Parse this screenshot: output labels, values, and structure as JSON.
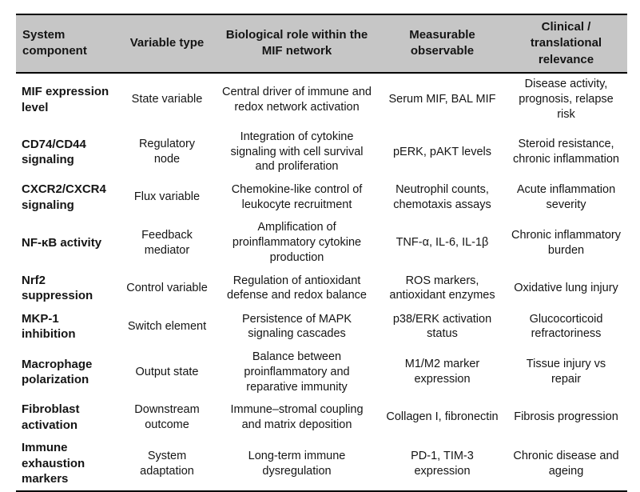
{
  "colors": {
    "header_bg": "#c6c6c6",
    "border": "#000000",
    "page_bg": "#ffffff",
    "text": "#151515"
  },
  "table": {
    "headers": [
      "System component",
      "Variable type",
      "Biological role within the MIF network",
      "Measurable observable",
      "Clinical / translational relevance"
    ],
    "rows": [
      {
        "component": "MIF expression level",
        "variable_type": "State variable",
        "biological_role": "Central driver of immune and redox network activation",
        "observable": "Serum MIF, BAL MIF",
        "relevance": "Disease activity, prognosis, relapse risk"
      },
      {
        "component": "CD74/CD44 signaling",
        "variable_type": "Regulatory node",
        "biological_role": "Integration of cytokine signaling with cell survival and proliferation",
        "observable": "pERK, pAKT levels",
        "relevance": "Steroid resistance, chronic inflammation"
      },
      {
        "component": "CXCR2/CXCR4 signaling",
        "variable_type": "Flux variable",
        "biological_role": "Chemokine-like control of leukocyte recruitment",
        "observable": "Neutrophil counts, chemotaxis assays",
        "relevance": "Acute inflammation severity"
      },
      {
        "component": "NF-κB activity",
        "variable_type": "Feedback mediator",
        "biological_role": "Amplification of proinflammatory cytokine production",
        "observable": "TNF-α, IL-6, IL-1β",
        "relevance": "Chronic inflammatory burden"
      },
      {
        "component": "Nrf2 suppression",
        "variable_type": "Control variable",
        "biological_role": "Regulation of antioxidant defense and redox balance",
        "observable": "ROS markers, antioxidant enzymes",
        "relevance": "Oxidative lung injury"
      },
      {
        "component": "MKP-1 inhibition",
        "variable_type": "Switch element",
        "biological_role": "Persistence of MAPK signaling cascades",
        "observable": "p38/ERK activation status",
        "relevance": "Glucocorticoid refractoriness"
      },
      {
        "component": "Macrophage polarization",
        "variable_type": "Output state",
        "biological_role": "Balance between proinflammatory and reparative immunity",
        "observable": "M1/M2 marker expression",
        "relevance": "Tissue injury vs repair"
      },
      {
        "component": "Fibroblast activation",
        "variable_type": "Downstream outcome",
        "biological_role": "Immune–stromal coupling and matrix deposition",
        "observable": "Collagen I, fibronectin",
        "relevance": "Fibrosis progression"
      },
      {
        "component": "Immune exhaustion markers",
        "variable_type": "System adaptation",
        "biological_role": "Long-term immune dysregulation",
        "observable": "PD-1, TIM-3 expression",
        "relevance": "Chronic disease and ageing"
      }
    ]
  }
}
